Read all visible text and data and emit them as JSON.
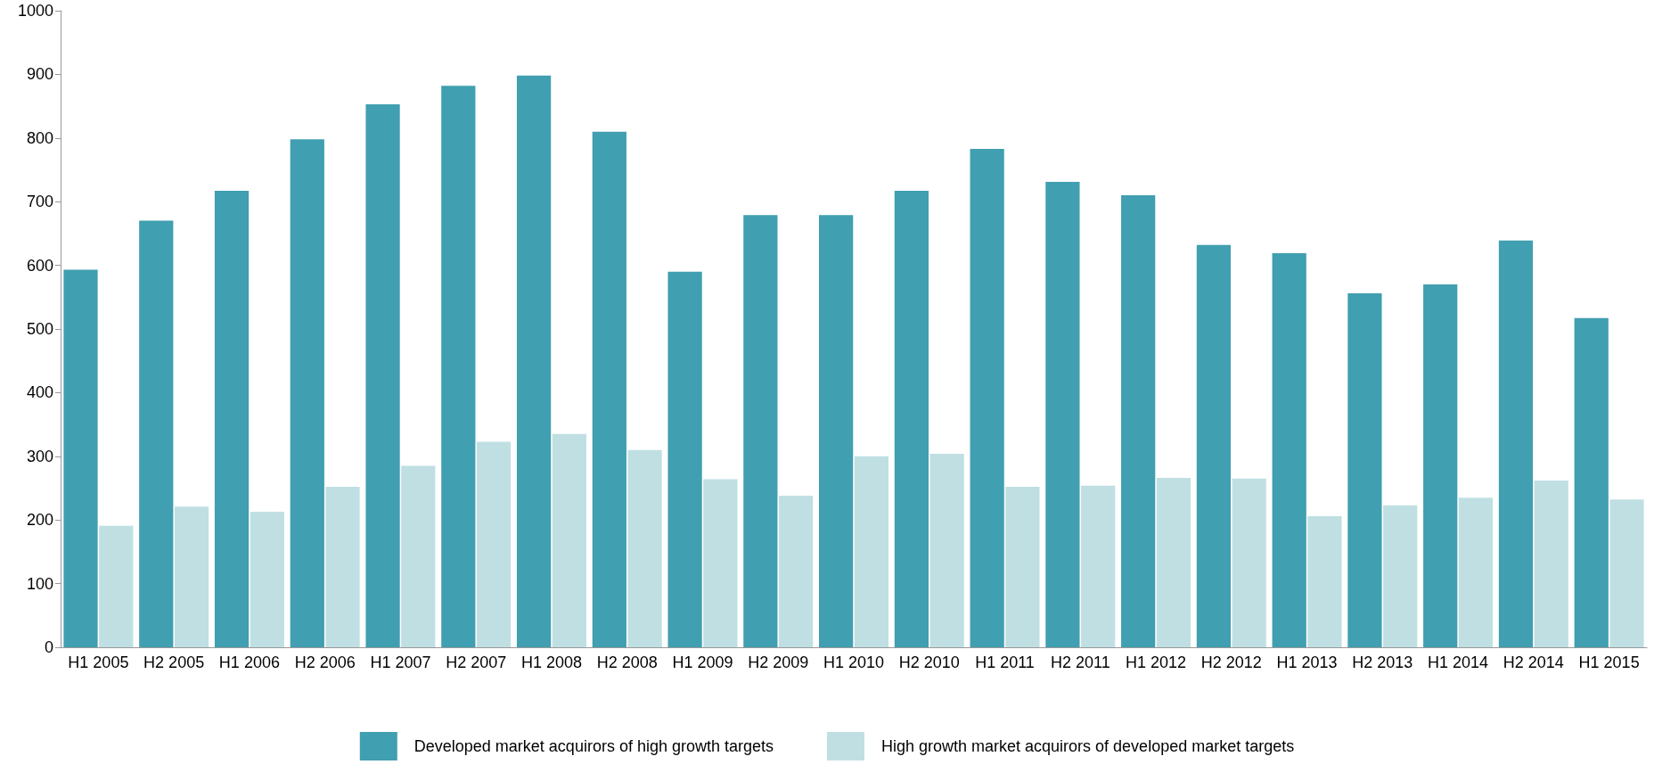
{
  "chart_data": {
    "type": "bar",
    "categories": [
      "H1 2005",
      "H2 2005",
      "H1 2006",
      "H2 2006",
      "H1 2007",
      "H2 2007",
      "H1 2008",
      "H2 2008",
      "H1 2009",
      "H2 2009",
      "H1 2010",
      "H2 2010",
      "H1 2011",
      "H2 2011",
      "H1 2012",
      "H2 2012",
      "H1 2013",
      "H2 2013",
      "H1 2014",
      "H2 2014",
      "H1 2015"
    ],
    "series": [
      {
        "name": "Developed market acquirors of high growth targets",
        "color": "#409fb0",
        "values": [
          593,
          670,
          717,
          798,
          853,
          882,
          898,
          810,
          590,
          679,
          679,
          717,
          783,
          731,
          710,
          632,
          619,
          556,
          570,
          639,
          517
        ]
      },
      {
        "name": "High growth market acquirors of developed market targets",
        "color": "#c0dfe3",
        "values": [
          191,
          221,
          213,
          252,
          285,
          323,
          335,
          310,
          264,
          238,
          300,
          304,
          252,
          254,
          266,
          265,
          206,
          223,
          235,
          262,
          232
        ]
      }
    ],
    "ylim": [
      0,
      1000
    ],
    "yticks": [
      0,
      100,
      200,
      300,
      400,
      500,
      600,
      700,
      800,
      900,
      1000
    ],
    "grid": false,
    "legend": "bottom"
  }
}
